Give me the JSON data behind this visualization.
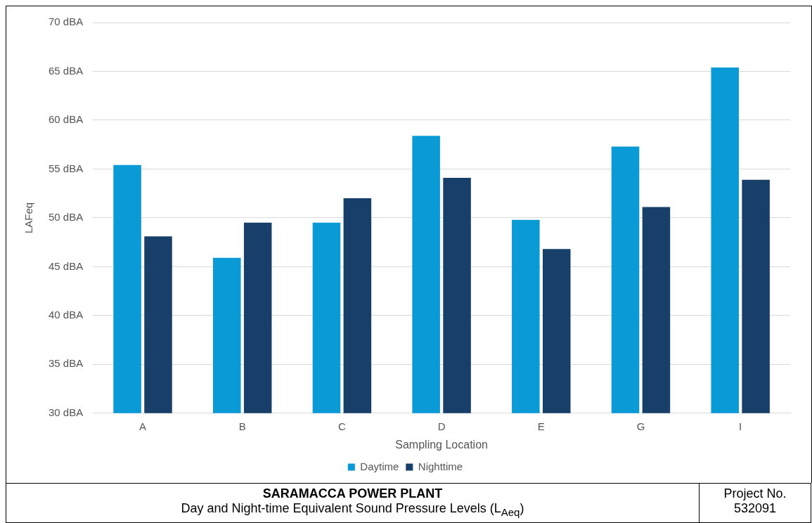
{
  "chart_data": {
    "type": "bar",
    "title": "SARAMACCA POWER PLANT",
    "subtitle": "Day and Night-time Equivalent Sound Pressure Levels (L$_{Aeq}$)",
    "annotations": [
      "Project No.\n532091"
    ],
    "xlabel": "Sampling Location",
    "ylabel": "LAFeq",
    "categories": [
      "A",
      "B",
      "C",
      "D",
      "E",
      "G",
      "I"
    ],
    "series": [
      {
        "name": "Daytime",
        "color": "#0a9ad6",
        "values": [
          55.4,
          45.9,
          49.5,
          58.4,
          49.8,
          57.3,
          65.4
        ]
      },
      {
        "name": "Nighttime",
        "color": "#173f6a",
        "values": [
          48.1,
          49.5,
          52.0,
          54.1,
          46.8,
          51.1,
          53.9
        ]
      }
    ],
    "ylim": [
      30,
      70
    ],
    "yticks": [
      {
        "value": 30,
        "label": "30 dBA"
      },
      {
        "value": 35,
        "label": "35 dBA"
      },
      {
        "value": 40,
        "label": "40 dBA"
      },
      {
        "value": 45,
        "label": "45 dBA"
      },
      {
        "value": 50,
        "label": "50 dBA"
      },
      {
        "value": 55,
        "label": "55 dBA"
      },
      {
        "value": 60,
        "label": "60 dBA"
      },
      {
        "value": 65,
        "label": "65 dBA"
      },
      {
        "value": 70,
        "label": "70 dBA"
      }
    ],
    "grid": "y",
    "legend": "bottom"
  }
}
